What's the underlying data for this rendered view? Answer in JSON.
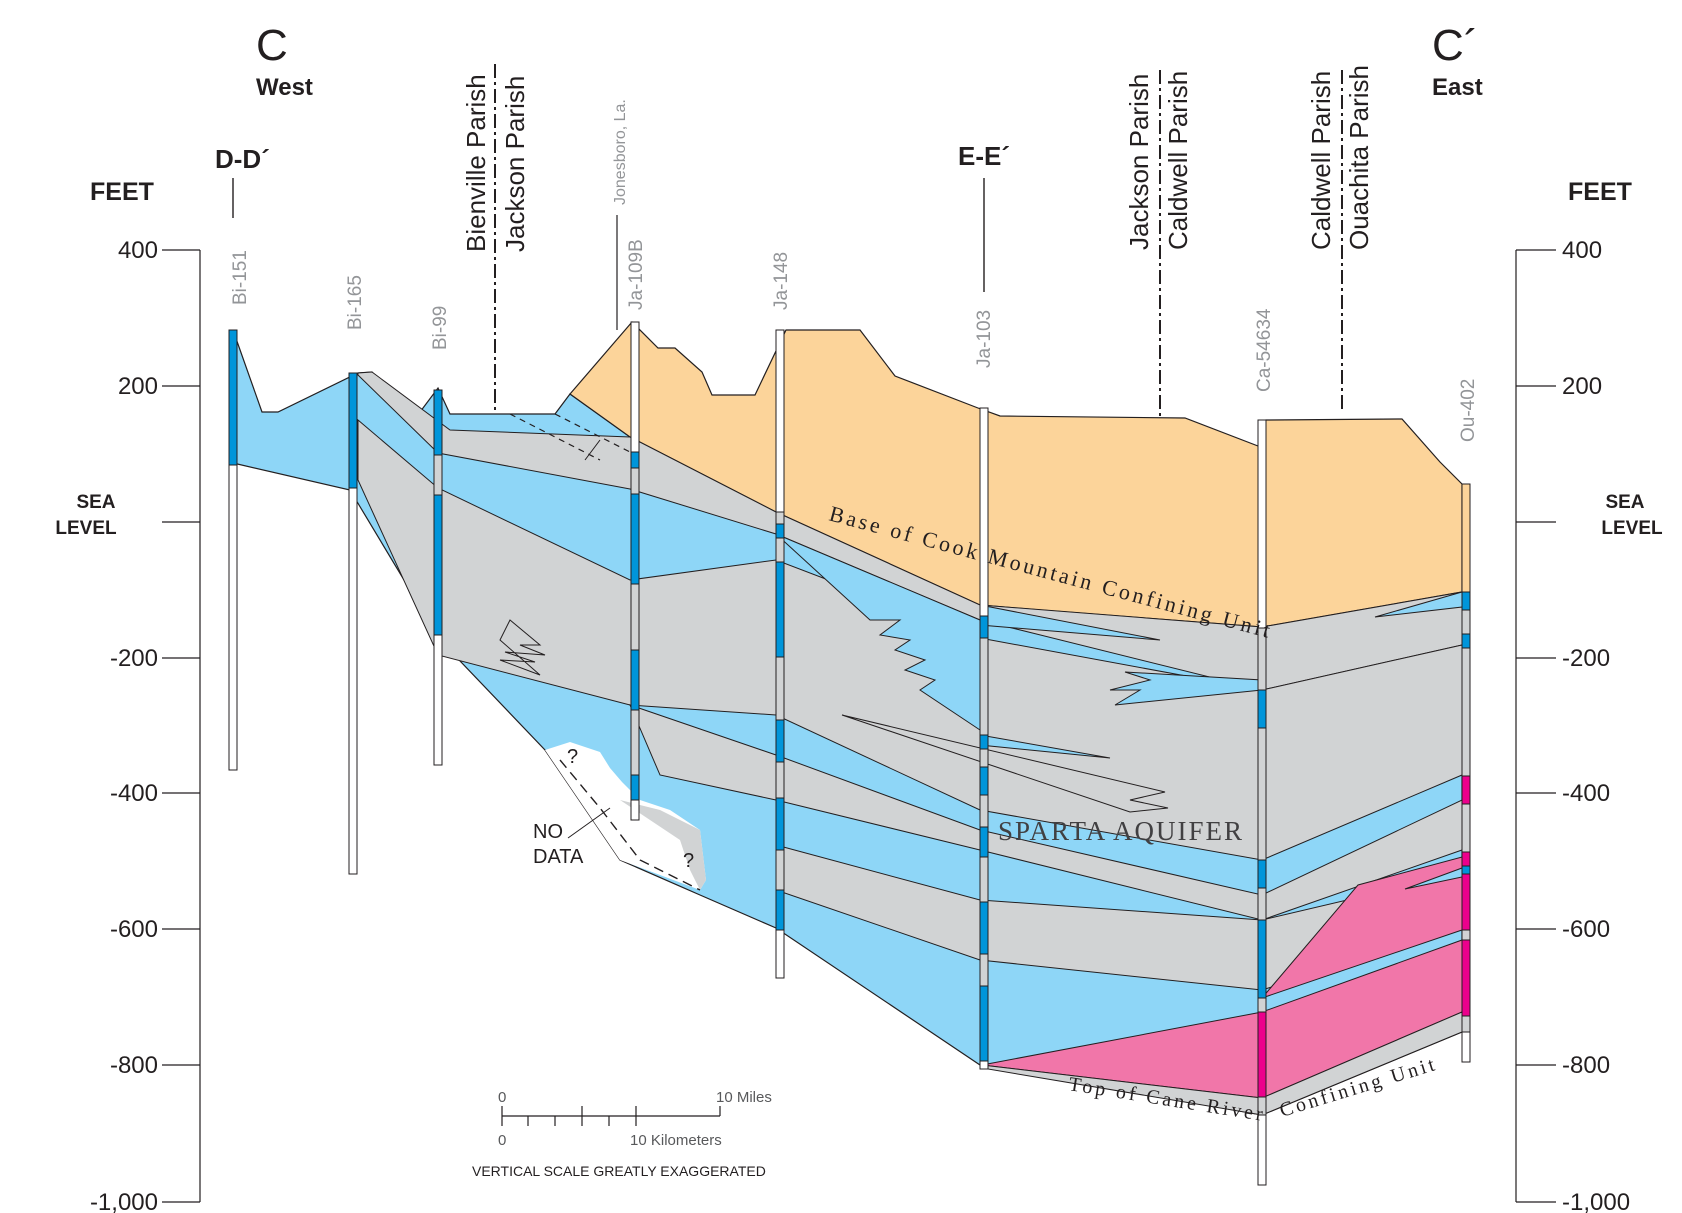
{
  "header": {
    "left_letter": "C",
    "left_direction": "West",
    "right_letter": "C´",
    "right_direction": "East"
  },
  "axis": {
    "unit": "FEET",
    "sea_level": [
      "SEA",
      "LEVEL"
    ],
    "ticks": [
      "400",
      "200",
      "-200",
      "-400",
      "-600",
      "-800",
      "-1,000"
    ],
    "tick_values": [
      400,
      200,
      -200,
      -400,
      -600,
      -800,
      -1000
    ]
  },
  "crossings": {
    "d": "D-D´",
    "e": "E-E´"
  },
  "parish_lines": [
    {
      "left": "Bienville Parish",
      "right": "Jackson Parish"
    },
    {
      "left": "Jackson Parish",
      "right": "Caldwell Parish"
    },
    {
      "left": "Caldwell Parish",
      "right": "Ouachita Parish"
    }
  ],
  "town": "Jonesboro, La.",
  "wells": [
    "Bi-151",
    "Bi-165",
    "Bi-99",
    "Ja-109B",
    "Ja-148",
    "Ja-103",
    "Ca-54634",
    "Ou-402"
  ],
  "units": {
    "cook_mountain": "Base of Cook Mountain Confining Unit",
    "sparta": "SPARTA AQUIFER",
    "cane_river_1": "Top of Cane River",
    "cane_river_2": "Confining Unit"
  },
  "no_data": {
    "line1": "NO",
    "line2": "DATA",
    "query": "?"
  },
  "scale": {
    "miles_zero": "0",
    "miles_label": "10 Miles",
    "km_zero": "0",
    "km_label": "10 Kilometers",
    "note": "VERTICAL SCALE GREATLY EXAGGERATED"
  },
  "colors": {
    "cook_mountain": "#fcd49a",
    "sand": "#8ed6f7",
    "clay": "#d1d3d4",
    "well_screen": "#0095da",
    "lower_sand": "#f176a9",
    "lower_screen": "#ec008c"
  }
}
